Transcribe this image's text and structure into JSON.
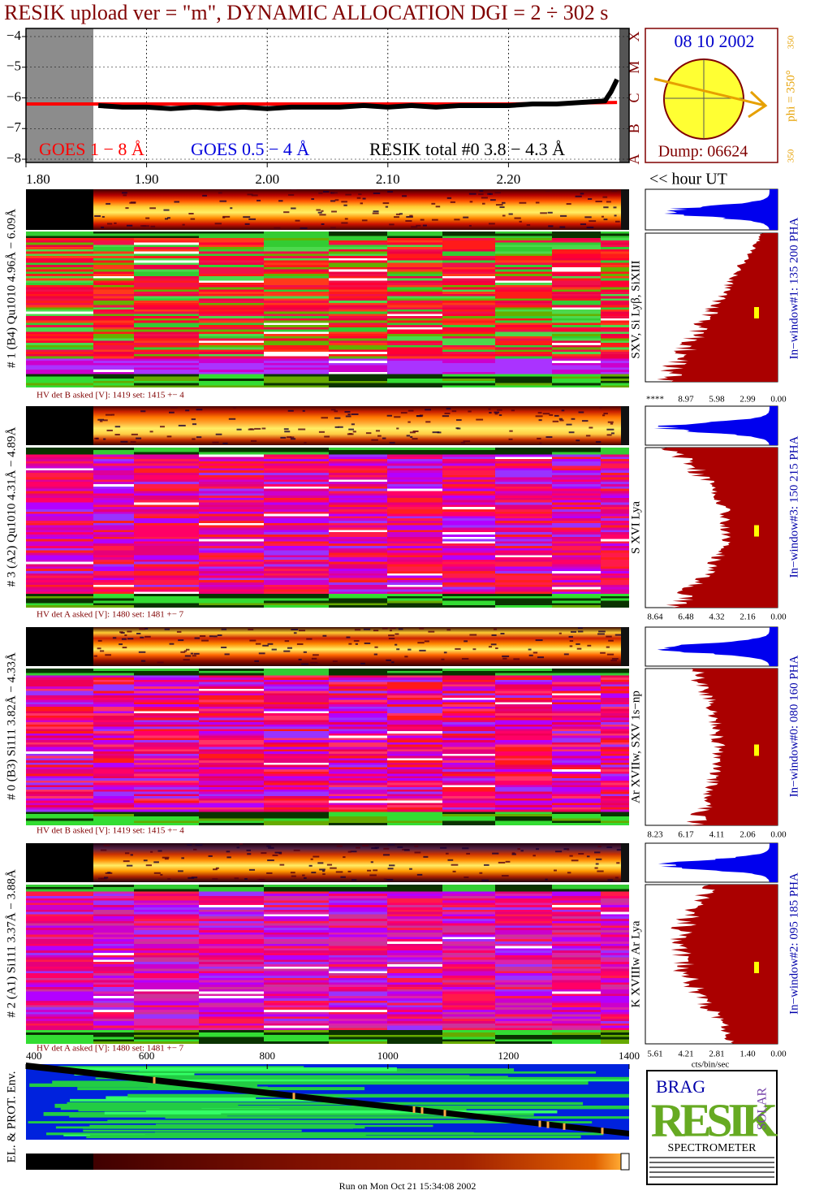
{
  "title": "RESIK upload ver = \"m\", DYNAMIC ALLOCATION  DGI =   2 ÷ 302 s",
  "chart_data": {
    "type": "line",
    "xlim": [
      1.8,
      2.3
    ],
    "xticks": [
      {
        "value": 1.8,
        "label": "1.80"
      },
      {
        "value": 1.9,
        "label": "1.90"
      },
      {
        "value": 2.0,
        "label": "2.00"
      },
      {
        "value": 2.1,
        "label": "2.10"
      },
      {
        "value": 2.2,
        "label": "2.20"
      }
    ],
    "x_label": "<< hour UT",
    "ylim": [
      -8,
      -4
    ],
    "yticks": [
      {
        "value": -4,
        "label": "−4"
      },
      {
        "value": -5,
        "label": "−5"
      },
      {
        "value": -6,
        "label": "−6"
      },
      {
        "value": -7,
        "label": "−7"
      },
      {
        "value": -8,
        "label": "−8"
      }
    ],
    "classes": [
      {
        "value": -8,
        "label": "A"
      },
      {
        "value": -7,
        "label": "B"
      },
      {
        "value": -6,
        "label": "C"
      },
      {
        "value": -5,
        "label": "M"
      },
      {
        "value": -4,
        "label": "X"
      }
    ],
    "grid": true,
    "legend": [
      {
        "label": "GOES 1 − 8 Å",
        "color": "#ff0000"
      },
      {
        "label": "GOES 0.5 − 4 Å",
        "color": "#0000dd"
      },
      {
        "label": "RESIK total #0  3.8 − 4.3 Å",
        "color": "#000000"
      }
    ],
    "series": [
      {
        "color": "#ff0000",
        "x": [
          1.8,
          1.9,
          2.0,
          2.1,
          2.2,
          2.29
        ],
        "values": [
          -6.2,
          -6.2,
          -6.2,
          -6.2,
          -6.2,
          -6.15
        ]
      },
      {
        "color": "#000000",
        "x": [
          1.86,
          1.88,
          1.9,
          1.92,
          1.94,
          1.96,
          1.98,
          2.0,
          2.02,
          2.04,
          2.06,
          2.08,
          2.1,
          2.12,
          2.14,
          2.16,
          2.18,
          2.2,
          2.22,
          2.24,
          2.26,
          2.28,
          2.285,
          2.29
        ],
        "values": [
          -6.25,
          -6.3,
          -6.3,
          -6.35,
          -6.3,
          -6.35,
          -6.3,
          -6.35,
          -6.3,
          -6.3,
          -6.3,
          -6.25,
          -6.3,
          -6.25,
          -6.3,
          -6.25,
          -6.25,
          -6.25,
          -6.2,
          -6.2,
          -6.15,
          -6.1,
          -5.8,
          -5.4
        ]
      }
    ]
  },
  "sun": {
    "date": "08 10 2002",
    "phi": "phi = 350°",
    "top": "350",
    "bottom": "350",
    "dump": "Dump: 06624"
  },
  "panels": [
    {
      "label": "# 1 (B4) Qu1010 4.96Å − 6.09Å",
      "hv": "HV det B asked [V]:  1419 set:  1415 +−   4",
      "lines": "SXV, Si Lyβ, SiXIII",
      "window": "In−window#1:  135 200 PHA",
      "ticks": [
        "****",
        "8.97",
        "5.98",
        "2.99",
        "0.00"
      ]
    },
    {
      "label": "# 3 (A2) Qu1010  4.31Å − 4.89Å",
      "hv": "HV det A asked [V]:  1480 set:  1481 +−   7",
      "lines": "S XVI Lya",
      "window": "In−window#3:  150 215 PHA",
      "ticks": [
        "8.64",
        "6.48",
        "4.32",
        "2.16",
        "0.00"
      ]
    },
    {
      "label": "# 0 (B3) Si111  3.82Å − 4.33Å",
      "hv": "HV det B asked [V]:  1419 set:  1415 +−   4",
      "lines": "Ar XVIIw,  SXV 1s−np",
      "window": "In−window#0:  080 160 PHA",
      "ticks": [
        "8.23",
        "6.17",
        "4.11",
        "2.06",
        "0.00"
      ]
    },
    {
      "label": "# 2 (A1) Si111  3.37Å − 3.88Å",
      "hv": "HV det A asked [V]:  1480 set:  1481 +−   7",
      "lines": "K XVIIIw  Ar Lya",
      "window": "In−window#2:  095 185 PHA",
      "ticks": [
        "5.61",
        "4.21",
        "2.81",
        "1.40",
        "0.00"
      ]
    }
  ],
  "hist_unit": "cts/bin/sec",
  "env": {
    "label": "EL. & PROT. Env.",
    "xlim": [
      400,
      1400
    ],
    "xticks": [
      400,
      600,
      800,
      1000,
      1200,
      1400
    ]
  },
  "logo": {
    "main": "RESIK",
    "top": "BRAG",
    "side": "SOLAR",
    "bottom": "SPECTROMETER"
  },
  "footer": "Run on Mon Oct 21 15:34:08 2002"
}
